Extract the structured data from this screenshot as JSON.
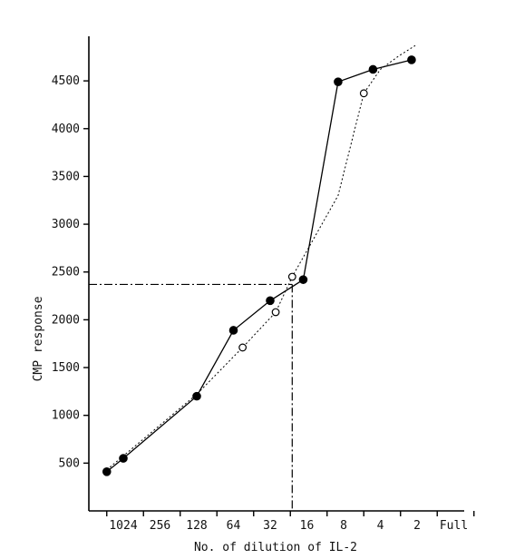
{
  "chart_data": {
    "type": "line",
    "xlabel": "No. of dilution of IL-2",
    "ylabel": "CMP response",
    "x_categories": [
      "1024",
      "256",
      "128",
      "64",
      "32",
      "16",
      "8",
      "4",
      "2",
      "Full"
    ],
    "y_ticks": [
      500,
      1000,
      1500,
      2000,
      2500,
      3000,
      3500,
      4000,
      4500
    ],
    "ylim": [
      0,
      4900
    ],
    "grid": false,
    "series": [
      {
        "marker": "filled-circle",
        "line_style": "solid",
        "x": [
          -0.45,
          0,
          2,
          3,
          4,
          4.9,
          5.85,
          6.8,
          7.85
        ],
        "y": [
          410,
          550,
          1200,
          1890,
          2200,
          2420,
          4490,
          4620,
          4720
        ]
      },
      {
        "marker": "open-circle",
        "line_style": "dotted",
        "x": [
          3.25,
          4.15,
          4.6,
          6.55
        ],
        "y": [
          1710,
          2080,
          2450,
          4370
        ]
      }
    ],
    "fit_curve": {
      "line_style": "dotted",
      "x": [
        -0.45,
        2,
        3.25,
        4.15,
        4.6,
        5.85,
        6.55,
        7,
        7.5,
        7.95
      ],
      "y": [
        430,
        1220,
        1710,
        2080,
        2450,
        3300,
        4370,
        4620,
        4760,
        4870
      ]
    },
    "reference_lines": {
      "y": 2370,
      "x": 4.6,
      "style": "dash-dot"
    }
  }
}
